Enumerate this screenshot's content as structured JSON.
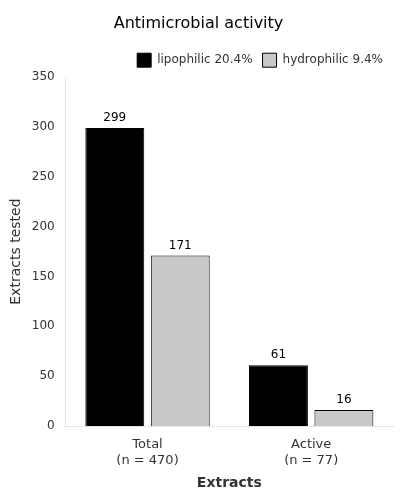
{
  "chart_data": {
    "type": "bar",
    "title": "Antimicrobial activity",
    "xlabel": "Extracts",
    "ylabel": "Extracts tested",
    "categories": [
      "Total\n(n = 470)",
      "Active\n(n = 77)"
    ],
    "series": [
      {
        "name": "lipophilic 20.4%",
        "color": "#000000",
        "values": [
          299,
          61
        ]
      },
      {
        "name": "hydrophilic 9.4%",
        "color": "#c8c8c8",
        "values": [
          171,
          16
        ]
      }
    ],
    "ylim": [
      0,
      350
    ],
    "yticks": [
      0,
      50,
      100,
      150,
      200,
      250,
      300,
      350
    ],
    "grid": false,
    "legend": "upper right",
    "data_labels": true
  }
}
